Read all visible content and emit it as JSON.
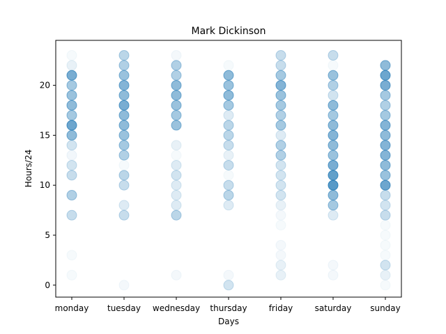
{
  "chart_data": {
    "type": "scatter",
    "title": "Mark Dickinson",
    "xlabel": "Days",
    "ylabel": "Hours/24",
    "categories": [
      "monday",
      "tuesday",
      "wednesday",
      "thursday",
      "friday",
      "saturday",
      "sunday"
    ],
    "ylim": [
      -1.2,
      24.5
    ],
    "yticks": [
      0,
      5,
      10,
      15,
      20
    ],
    "grid": false,
    "legend": "none",
    "marker_color": "#1f77b4",
    "points": {
      "monday": [
        [
          1,
          0.04
        ],
        [
          3,
          0.04
        ],
        [
          7,
          0.25
        ],
        [
          9,
          0.35
        ],
        [
          11,
          0.25
        ],
        [
          12,
          0.2
        ],
        [
          13,
          0.06
        ],
        [
          14,
          0.2
        ],
        [
          15,
          0.5
        ],
        [
          16,
          0.65
        ],
        [
          17,
          0.4
        ],
        [
          18,
          0.5
        ],
        [
          19,
          0.45
        ],
        [
          20,
          0.4
        ],
        [
          21,
          0.6
        ],
        [
          22,
          0.1
        ],
        [
          23,
          0.04
        ]
      ],
      "tuesday": [
        [
          0,
          0.05
        ],
        [
          7,
          0.25
        ],
        [
          8,
          0.15
        ],
        [
          10,
          0.25
        ],
        [
          11,
          0.3
        ],
        [
          12,
          0.04
        ],
        [
          13,
          0.35
        ],
        [
          14,
          0.4
        ],
        [
          15,
          0.45
        ],
        [
          16,
          0.5
        ],
        [
          17,
          0.5
        ],
        [
          18,
          0.6
        ],
        [
          19,
          0.5
        ],
        [
          20,
          0.55
        ],
        [
          21,
          0.45
        ],
        [
          22,
          0.35
        ],
        [
          23,
          0.3
        ]
      ],
      "wednesday": [
        [
          1,
          0.05
        ],
        [
          7,
          0.3
        ],
        [
          8,
          0.15
        ],
        [
          9,
          0.15
        ],
        [
          10,
          0.15
        ],
        [
          11,
          0.2
        ],
        [
          12,
          0.15
        ],
        [
          13,
          0.04
        ],
        [
          14,
          0.1
        ],
        [
          16,
          0.45
        ],
        [
          17,
          0.4
        ],
        [
          18,
          0.45
        ],
        [
          19,
          0.5
        ],
        [
          20,
          0.5
        ],
        [
          21,
          0.35
        ],
        [
          22,
          0.35
        ],
        [
          23,
          0.05
        ]
      ],
      "thursday": [
        [
          0,
          0.2
        ],
        [
          1,
          0.05
        ],
        [
          8,
          0.15
        ],
        [
          9,
          0.3
        ],
        [
          10,
          0.25
        ],
        [
          11,
          0.04
        ],
        [
          12,
          0.25
        ],
        [
          13,
          0.1
        ],
        [
          14,
          0.25
        ],
        [
          15,
          0.3
        ],
        [
          16,
          0.3
        ],
        [
          17,
          0.15
        ],
        [
          18,
          0.4
        ],
        [
          19,
          0.5
        ],
        [
          20,
          0.45
        ],
        [
          21,
          0.5
        ],
        [
          22,
          0.04
        ]
      ],
      "friday": [
        [
          1,
          0.1
        ],
        [
          2,
          0.1
        ],
        [
          3,
          0.05
        ],
        [
          4,
          0.05
        ],
        [
          6,
          0.04
        ],
        [
          7,
          0.05
        ],
        [
          8,
          0.1
        ],
        [
          9,
          0.2
        ],
        [
          10,
          0.2
        ],
        [
          11,
          0.2
        ],
        [
          12,
          0.2
        ],
        [
          13,
          0.35
        ],
        [
          14,
          0.35
        ],
        [
          15,
          0.15
        ],
        [
          16,
          0.4
        ],
        [
          17,
          0.35
        ],
        [
          18,
          0.4
        ],
        [
          19,
          0.45
        ],
        [
          20,
          0.55
        ],
        [
          21,
          0.4
        ],
        [
          22,
          0.25
        ],
        [
          23,
          0.25
        ]
      ],
      "saturday": [
        [
          1,
          0.05
        ],
        [
          2,
          0.05
        ],
        [
          7,
          0.15
        ],
        [
          8,
          0.4
        ],
        [
          9,
          0.5
        ],
        [
          10,
          0.75
        ],
        [
          11,
          0.7
        ],
        [
          12,
          0.6
        ],
        [
          13,
          0.45
        ],
        [
          14,
          0.5
        ],
        [
          15,
          0.55
        ],
        [
          16,
          0.5
        ],
        [
          17,
          0.4
        ],
        [
          18,
          0.5
        ],
        [
          19,
          0.2
        ],
        [
          20,
          0.35
        ],
        [
          21,
          0.45
        ],
        [
          22,
          0.04
        ],
        [
          23,
          0.25
        ]
      ],
      "sunday": [
        [
          0,
          0.04
        ],
        [
          1,
          0.1
        ],
        [
          2,
          0.2
        ],
        [
          3,
          0.04
        ],
        [
          4,
          0.04
        ],
        [
          5,
          0.04
        ],
        [
          6,
          0.04
        ],
        [
          7,
          0.25
        ],
        [
          8,
          0.2
        ],
        [
          9,
          0.25
        ],
        [
          10,
          0.65
        ],
        [
          11,
          0.45
        ],
        [
          12,
          0.5
        ],
        [
          13,
          0.55
        ],
        [
          14,
          0.55
        ],
        [
          15,
          0.5
        ],
        [
          16,
          0.55
        ],
        [
          17,
          0.4
        ],
        [
          18,
          0.35
        ],
        [
          19,
          0.4
        ],
        [
          20,
          0.6
        ],
        [
          21,
          0.65
        ],
        [
          22,
          0.5
        ]
      ]
    }
  }
}
